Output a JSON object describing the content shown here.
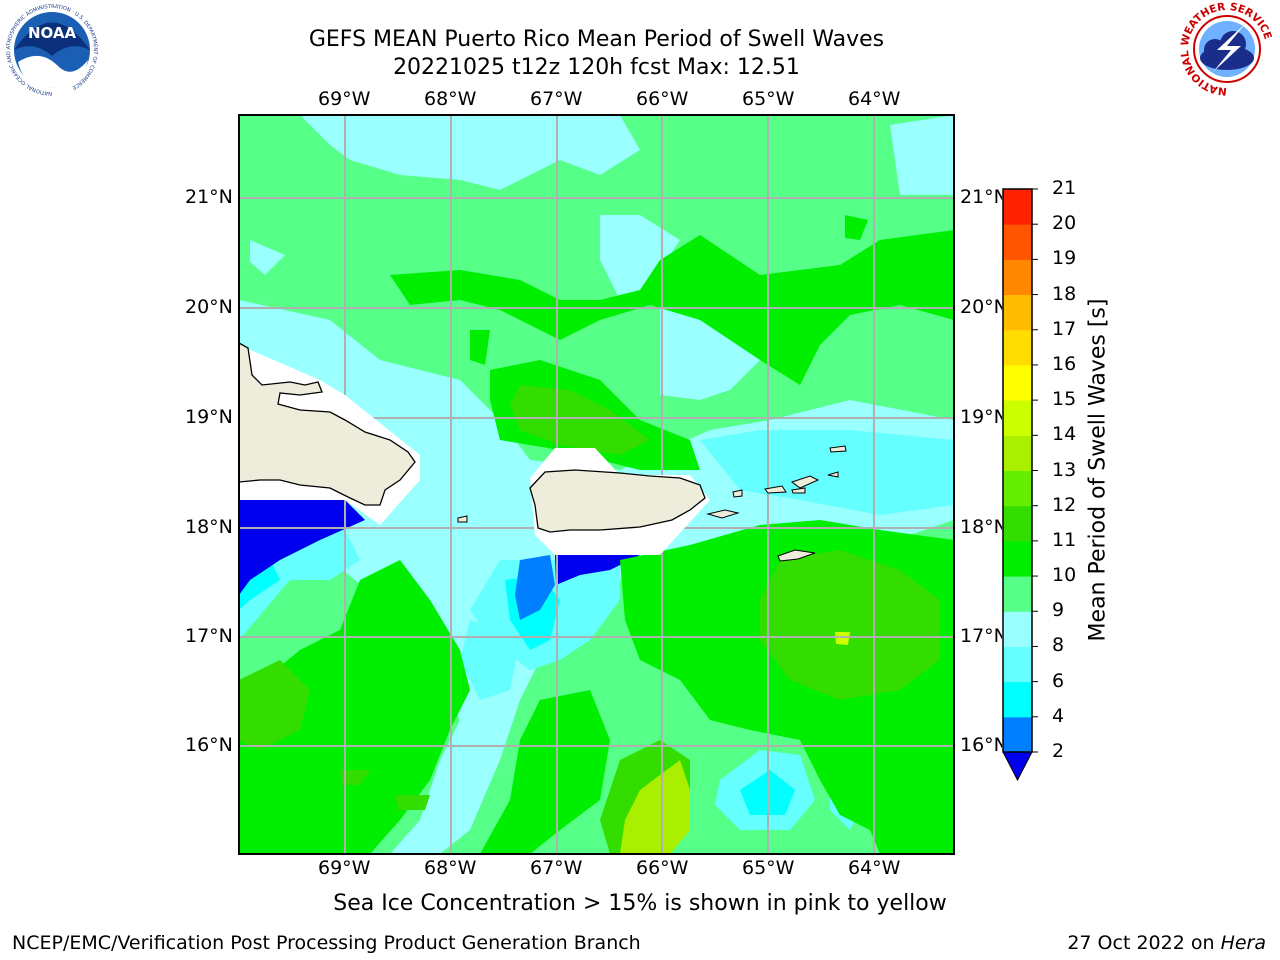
{
  "title": {
    "line1": "GEFS MEAN Puerto Rico Mean Period of Swell Waves",
    "line2": "20221025 t12z 120h fcst   Max: 12.51"
  },
  "map": {
    "lon_labels": [
      "69°W",
      "68°W",
      "67°W",
      "66°W",
      "65°W",
      "64°W"
    ],
    "lat_labels": [
      "21°N",
      "20°N",
      "19°N",
      "18°N",
      "17°N",
      "16°N"
    ],
    "land_color": "#eeecda",
    "grid_color": "#b0b0b0"
  },
  "colorbar": {
    "label": "Mean Period of Swell Waves [s]",
    "ticks": [
      "2",
      "4",
      "6",
      "8",
      "9",
      "10",
      "11",
      "12",
      "13",
      "14",
      "15",
      "16",
      "17",
      "18",
      "19",
      "20",
      "21"
    ],
    "colors": [
      "#0000ee",
      "#0080ff",
      "#00ffff",
      "#66ffff",
      "#99ffff",
      "#55ff88",
      "#00ee00",
      "#33dd00",
      "#66ee00",
      "#aaee00",
      "#ccff00",
      "#ffff00",
      "#ffdd00",
      "#ffbb00",
      "#ff8800",
      "#ff5500",
      "#ff2200",
      "#ff0000"
    ]
  },
  "caption": "Sea Ice Concentration > 15% is shown in pink to yellow",
  "footer": {
    "left": "NCEP/EMC/Verification Post Processing Product Generation Branch",
    "date": "27 Oct 2022 on",
    "machine": "Hera"
  },
  "logos": {
    "noaa": "NOAA",
    "noaa_ring": "NATIONAL OCEANIC AND ATMOSPHERIC ADMINISTRATION · U.S. DEPARTMENT OF COMMERCE",
    "nws_ring": "NATIONAL WEATHER SERVICE"
  }
}
